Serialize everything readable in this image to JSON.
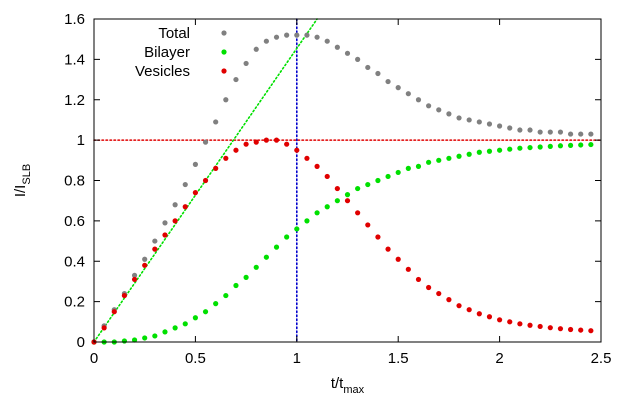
{
  "chart_data": {
    "type": "scatter",
    "xlabel": {
      "base": "t/t",
      "sub": "max"
    },
    "ylabel": {
      "base": "I/I",
      "sub": "SLB"
    },
    "xlim": [
      0,
      2.5
    ],
    "ylim": [
      0,
      1.6
    ],
    "xticks": [
      {
        "value": 0,
        "label": "0"
      },
      {
        "value": 0.5,
        "label": "0.5"
      },
      {
        "value": 1,
        "label": "1"
      },
      {
        "value": 1.5,
        "label": "1.5"
      },
      {
        "value": 2,
        "label": "2"
      },
      {
        "value": 2.5,
        "label": "2.5"
      }
    ],
    "yticks": [
      {
        "value": 0,
        "label": "0"
      },
      {
        "value": 0.2,
        "label": "0.2"
      },
      {
        "value": 0.4,
        "label": "0.4"
      },
      {
        "value": 0.6,
        "label": "0.6"
      },
      {
        "value": 0.8,
        "label": "0.8"
      },
      {
        "value": 1,
        "label": "1"
      },
      {
        "value": 1.2,
        "label": "1.2"
      },
      {
        "value": 1.4,
        "label": "1.4"
      },
      {
        "value": 1.6,
        "label": "1.6"
      }
    ],
    "grid": false,
    "legend_position": "top-left",
    "series": [
      {
        "name": "Total",
        "color": "#808080",
        "x": [
          0,
          0.05,
          0.1,
          0.15,
          0.2,
          0.25,
          0.3,
          0.35,
          0.4,
          0.45,
          0.5,
          0.55,
          0.6,
          0.65,
          0.7,
          0.75,
          0.8,
          0.85,
          0.9,
          0.95,
          1.0,
          1.05,
          1.1,
          1.15,
          1.2,
          1.25,
          1.3,
          1.35,
          1.4,
          1.45,
          1.5,
          1.55,
          1.6,
          1.65,
          1.7,
          1.75,
          1.8,
          1.85,
          1.9,
          1.95,
          2.0,
          2.05,
          2.1,
          2.15,
          2.2,
          2.25,
          2.3,
          2.35,
          2.4,
          2.45
        ],
        "y": [
          0,
          0.08,
          0.16,
          0.24,
          0.33,
          0.41,
          0.5,
          0.59,
          0.68,
          0.78,
          0.88,
          0.99,
          1.09,
          1.2,
          1.3,
          1.38,
          1.45,
          1.49,
          1.51,
          1.52,
          1.52,
          1.52,
          1.51,
          1.49,
          1.46,
          1.43,
          1.4,
          1.36,
          1.33,
          1.29,
          1.26,
          1.23,
          1.2,
          1.17,
          1.15,
          1.13,
          1.11,
          1.1,
          1.09,
          1.08,
          1.07,
          1.06,
          1.05,
          1.05,
          1.04,
          1.04,
          1.04,
          1.03,
          1.03,
          1.03
        ]
      },
      {
        "name": "Bilayer",
        "color": "#00e000",
        "x": [
          0,
          0.05,
          0.1,
          0.15,
          0.2,
          0.25,
          0.3,
          0.35,
          0.4,
          0.45,
          0.5,
          0.55,
          0.6,
          0.65,
          0.7,
          0.75,
          0.8,
          0.85,
          0.9,
          0.95,
          1.0,
          1.05,
          1.1,
          1.15,
          1.2,
          1.25,
          1.3,
          1.35,
          1.4,
          1.45,
          1.5,
          1.55,
          1.6,
          1.65,
          1.7,
          1.75,
          1.8,
          1.85,
          1.9,
          1.95,
          2.0,
          2.05,
          2.1,
          2.15,
          2.2,
          2.25,
          2.3,
          2.35,
          2.4,
          2.45
        ],
        "y": [
          0,
          0,
          0,
          0.005,
          0.01,
          0.02,
          0.03,
          0.05,
          0.07,
          0.09,
          0.12,
          0.15,
          0.19,
          0.23,
          0.28,
          0.32,
          0.37,
          0.42,
          0.47,
          0.52,
          0.56,
          0.6,
          0.64,
          0.67,
          0.7,
          0.73,
          0.76,
          0.78,
          0.8,
          0.82,
          0.84,
          0.86,
          0.87,
          0.89,
          0.9,
          0.91,
          0.92,
          0.93,
          0.94,
          0.945,
          0.95,
          0.955,
          0.96,
          0.963,
          0.966,
          0.969,
          0.972,
          0.974,
          0.976,
          0.978
        ]
      },
      {
        "name": "Vesicles",
        "color": "#e00000",
        "x": [
          0,
          0.05,
          0.1,
          0.15,
          0.2,
          0.25,
          0.3,
          0.35,
          0.4,
          0.45,
          0.5,
          0.55,
          0.6,
          0.65,
          0.7,
          0.75,
          0.8,
          0.85,
          0.9,
          0.95,
          1.0,
          1.05,
          1.1,
          1.15,
          1.2,
          1.25,
          1.3,
          1.35,
          1.4,
          1.45,
          1.5,
          1.55,
          1.6,
          1.65,
          1.7,
          1.75,
          1.8,
          1.85,
          1.9,
          1.95,
          2.0,
          2.05,
          2.1,
          2.15,
          2.2,
          2.25,
          2.3,
          2.35,
          2.4,
          2.45
        ],
        "y": [
          0,
          0.07,
          0.15,
          0.23,
          0.31,
          0.38,
          0.46,
          0.53,
          0.6,
          0.67,
          0.74,
          0.8,
          0.86,
          0.91,
          0.95,
          0.98,
          0.99,
          1.0,
          1.0,
          0.98,
          0.95,
          0.91,
          0.87,
          0.82,
          0.76,
          0.7,
          0.64,
          0.58,
          0.52,
          0.46,
          0.41,
          0.36,
          0.31,
          0.27,
          0.24,
          0.21,
          0.18,
          0.16,
          0.14,
          0.125,
          0.11,
          0.1,
          0.09,
          0.083,
          0.077,
          0.071,
          0.066,
          0.062,
          0.059,
          0.056
        ]
      }
    ],
    "reference_lines": [
      {
        "orientation": "horizontal",
        "value": 1,
        "color": "#e00000",
        "style": "dotted"
      },
      {
        "orientation": "vertical",
        "value": 1,
        "color": "#0000cc",
        "style": "dotted"
      },
      {
        "orientation": "diagonal",
        "from": [
          0,
          0
        ],
        "to": [
          1.1,
          1.6
        ],
        "color": "#00e000",
        "style": "dotted"
      }
    ]
  }
}
